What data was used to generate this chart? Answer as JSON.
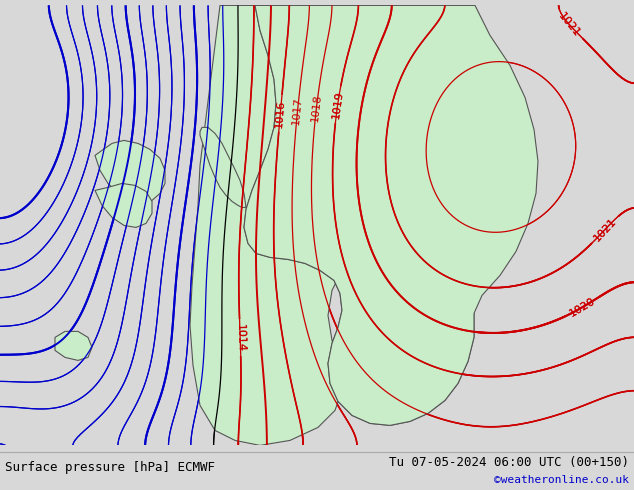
{
  "title_left": "Surface pressure [hPa] ECMWF",
  "title_right": "Tu 07-05-2024 06:00 UTC (00+150)",
  "credit": "©weatheronline.co.uk",
  "bg_color": "#d8d8d8",
  "land_color": "#c8edc8",
  "sea_color": "#d8d8d8",
  "contour_color_low": "#0000cc",
  "contour_color_mid": "#000000",
  "contour_color_high": "#cc0000",
  "label_color": "#cc0000",
  "label_fontsize": 8,
  "bottom_bar_color": "#e8e8e8",
  "bottom_text_color": "#000000",
  "credit_color": "#0000cc",
  "figsize": [
    6.34,
    4.9
  ],
  "dpi": 100
}
